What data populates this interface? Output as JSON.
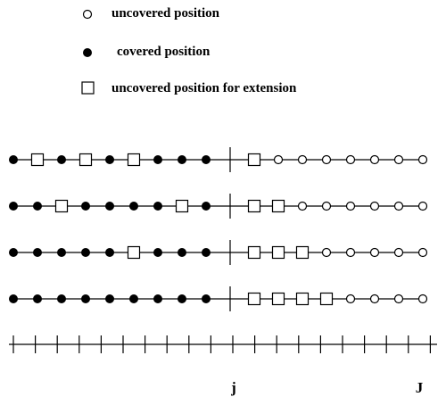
{
  "legend": {
    "uncovered_label": "uncovered position",
    "covered_label": "covered position",
    "extension_label": "uncovered position for extension"
  },
  "axis": {
    "j_label": "j",
    "J_label": "J"
  },
  "rows": [
    [
      "covered",
      "extension",
      "covered",
      "extension",
      "covered",
      "extension",
      "covered",
      "covered",
      "covered",
      "divider",
      "extension",
      "uncovered",
      "uncovered",
      "uncovered",
      "uncovered",
      "uncovered",
      "uncovered",
      "uncovered"
    ],
    [
      "covered",
      "covered",
      "extension",
      "covered",
      "covered",
      "covered",
      "covered",
      "extension",
      "covered",
      "divider",
      "extension",
      "extension",
      "uncovered",
      "uncovered",
      "uncovered",
      "uncovered",
      "uncovered",
      "uncovered"
    ],
    [
      "covered",
      "covered",
      "covered",
      "covered",
      "covered",
      "extension",
      "covered",
      "covered",
      "covered",
      "divider",
      "extension",
      "extension",
      "extension",
      "uncovered",
      "uncovered",
      "uncovered",
      "uncovered",
      "uncovered"
    ],
    [
      "covered",
      "covered",
      "covered",
      "covered",
      "covered",
      "covered",
      "covered",
      "covered",
      "covered",
      "divider",
      "extension",
      "extension",
      "extension",
      "extension",
      "uncovered",
      "uncovered",
      "uncovered",
      "uncovered"
    ]
  ],
  "ruler_ticks": 19
}
